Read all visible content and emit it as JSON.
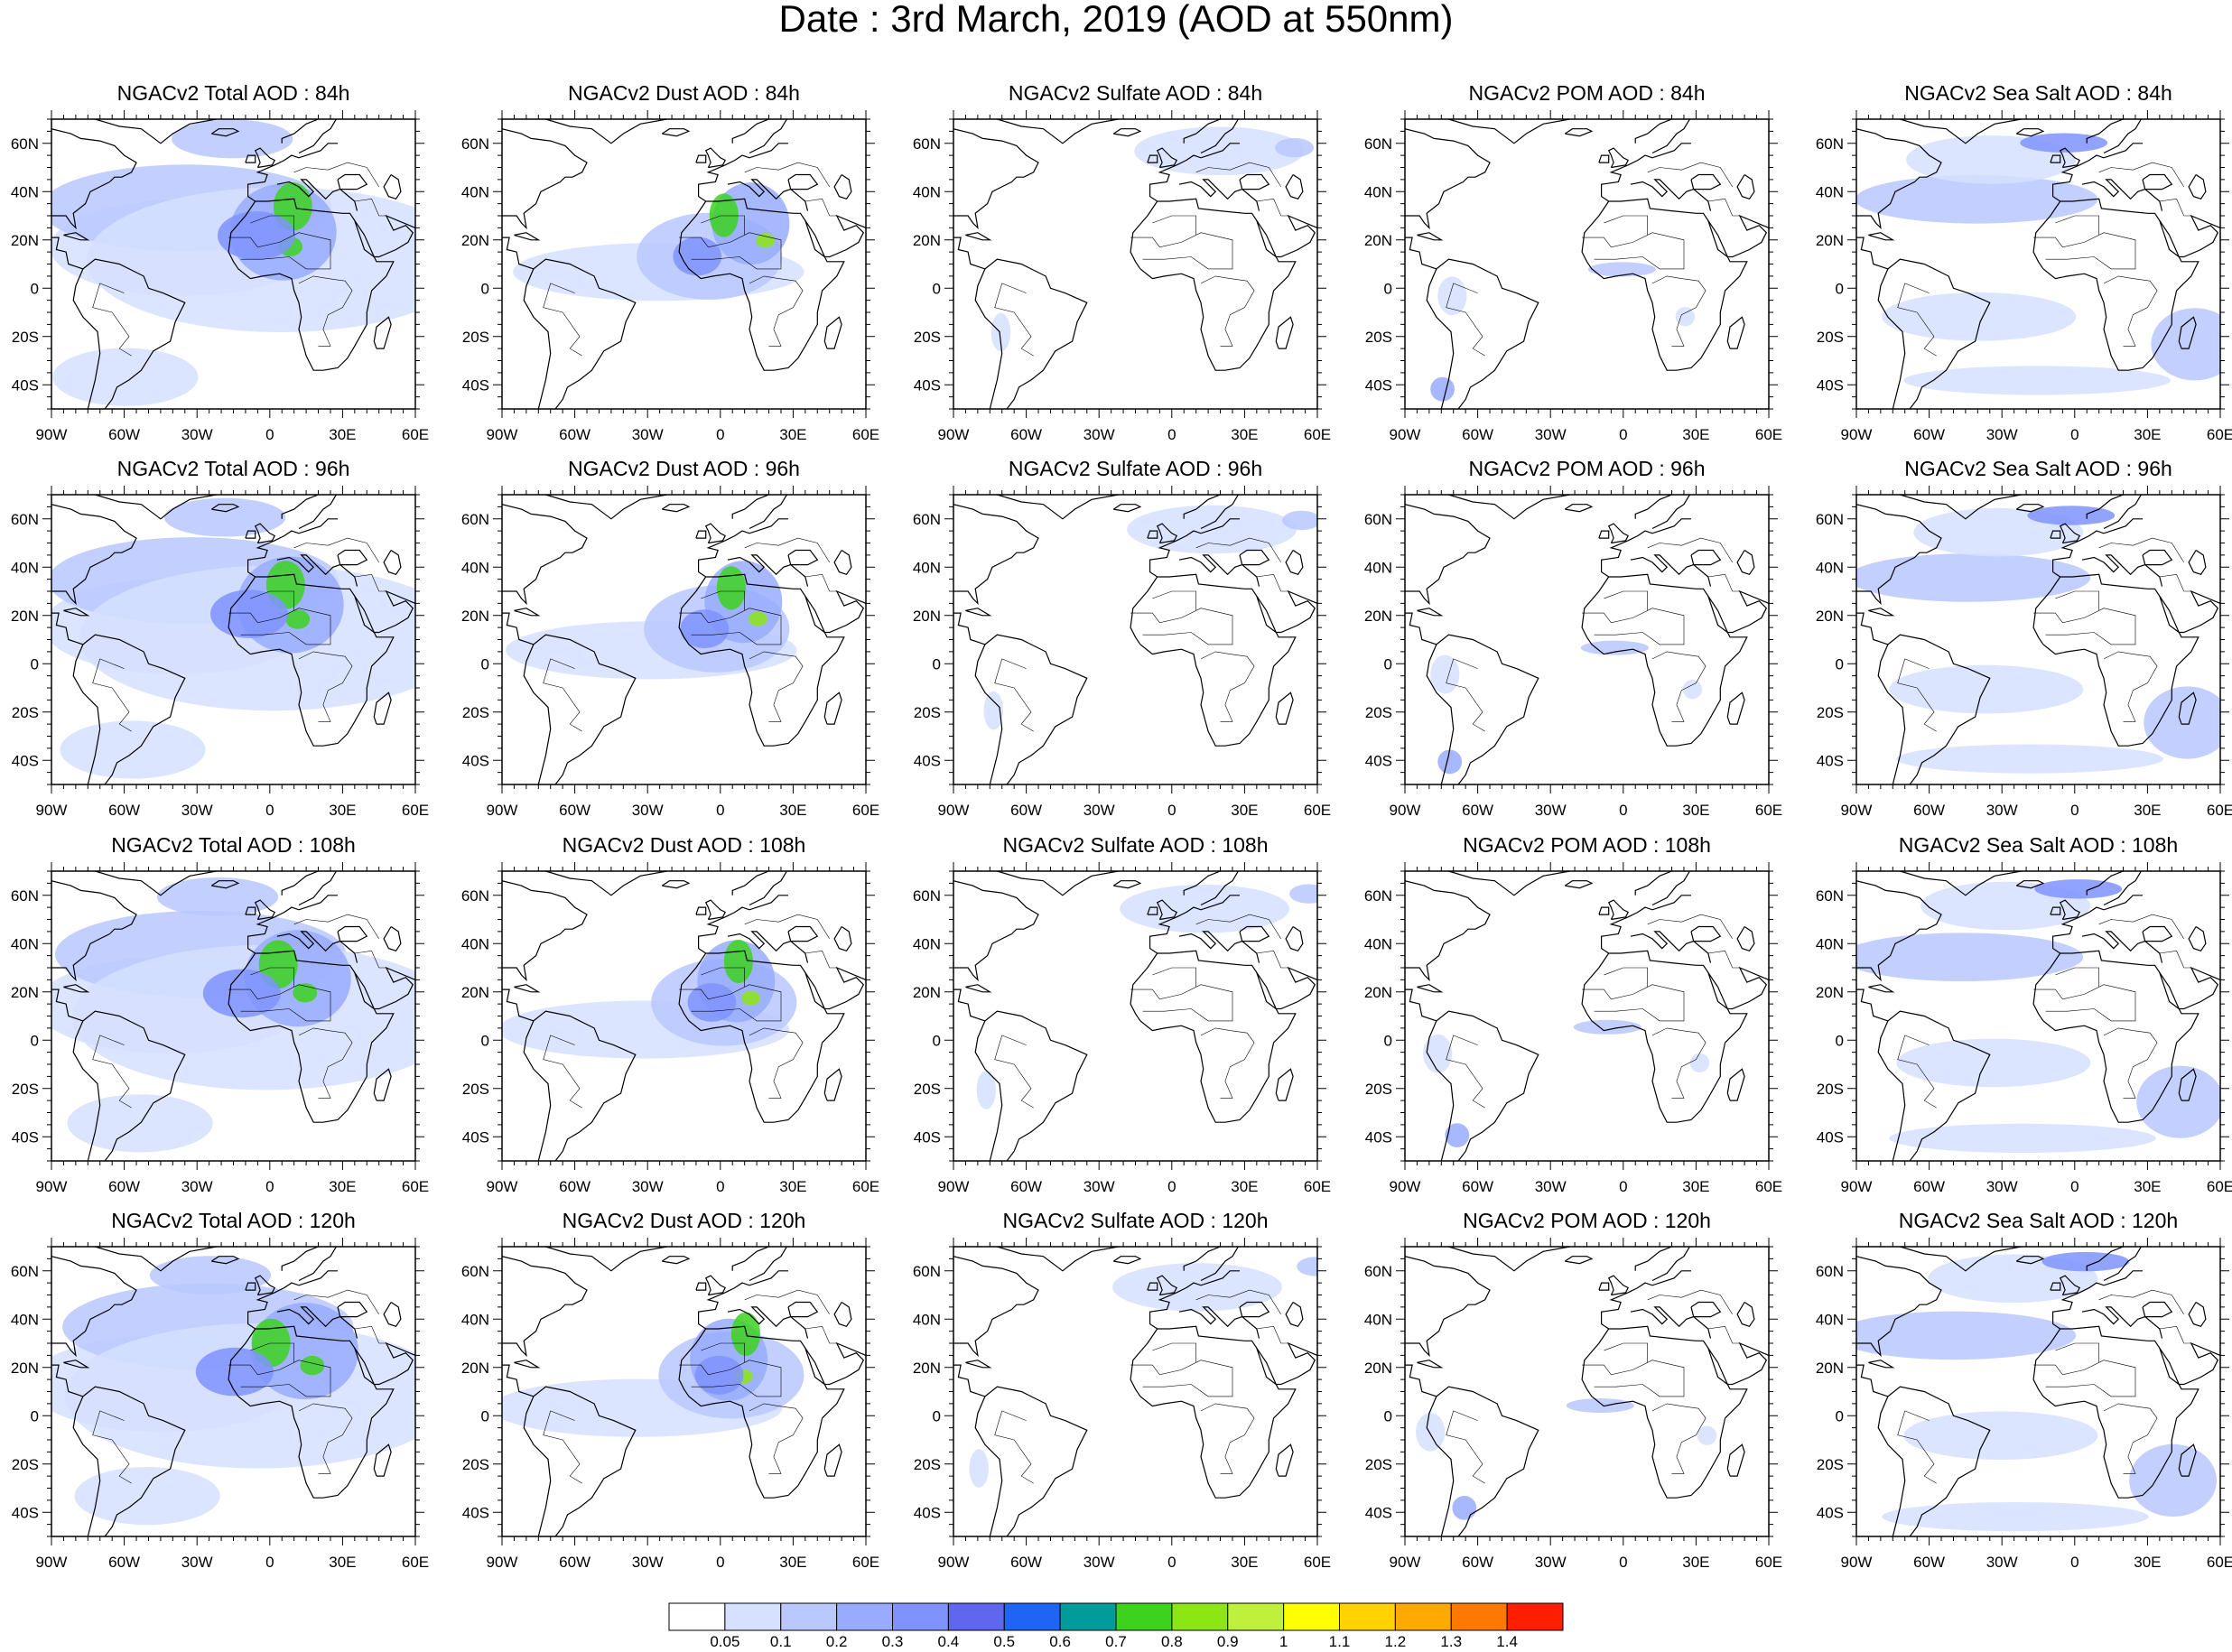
{
  "title": "Date : 3rd March, 2019 (AOD at 550nm)",
  "panels": [
    [
      "NGACv2 Total AOD : 84h",
      "NGACv2 Dust AOD : 84h",
      "NGACv2 Sulfate AOD : 84h",
      "NGACv2 POM AOD : 84h",
      "NGACv2 Sea Salt AOD : 84h"
    ],
    [
      "NGACv2 Total AOD : 96h",
      "NGACv2 Dust AOD : 96h",
      "NGACv2 Sulfate AOD : 96h",
      "NGACv2 POM AOD : 96h",
      "NGACv2 Sea Salt AOD : 96h"
    ],
    [
      "NGACv2 Total AOD : 108h",
      "NGACv2 Dust AOD : 108h",
      "NGACv2 Sulfate AOD : 108h",
      "NGACv2 POM AOD : 108h",
      "NGACv2 Sea Salt AOD : 108h"
    ],
    [
      "NGACv2 Total AOD : 120h",
      "NGACv2 Dust AOD : 120h",
      "NGACv2 Sulfate AOD : 120h",
      "NGACv2 POM AOD : 120h",
      "NGACv2 Sea Salt  AOD : 120h"
    ]
  ],
  "lat_ticks": [
    "60N",
    "40N",
    "20N",
    "0",
    "20S",
    "40S"
  ],
  "lon_ticks": [
    "90W",
    "60W",
    "30W",
    "0",
    "30E",
    "60E"
  ],
  "map_extent": {
    "lon_min": -90,
    "lon_max": 60,
    "lat_min": -50,
    "lat_max": 70
  },
  "colorbar": {
    "colors": [
      "#ffffff",
      "#d6e0ff",
      "#b9c8ff",
      "#98abff",
      "#7f93ff",
      "#5f66f0",
      "#1e64f5",
      "#009c9c",
      "#3cd21e",
      "#8ce614",
      "#bef03c",
      "#ffff00",
      "#ffd200",
      "#ffaa00",
      "#ff7800",
      "#ff1e00"
    ],
    "labels": [
      "0.05",
      "0.1",
      "0.2",
      "0.3",
      "0.4",
      "0.5",
      "0.6",
      "0.7",
      "0.8",
      "0.9",
      "1",
      "1.1",
      "1.2",
      "1.3",
      "1.4"
    ]
  }
}
